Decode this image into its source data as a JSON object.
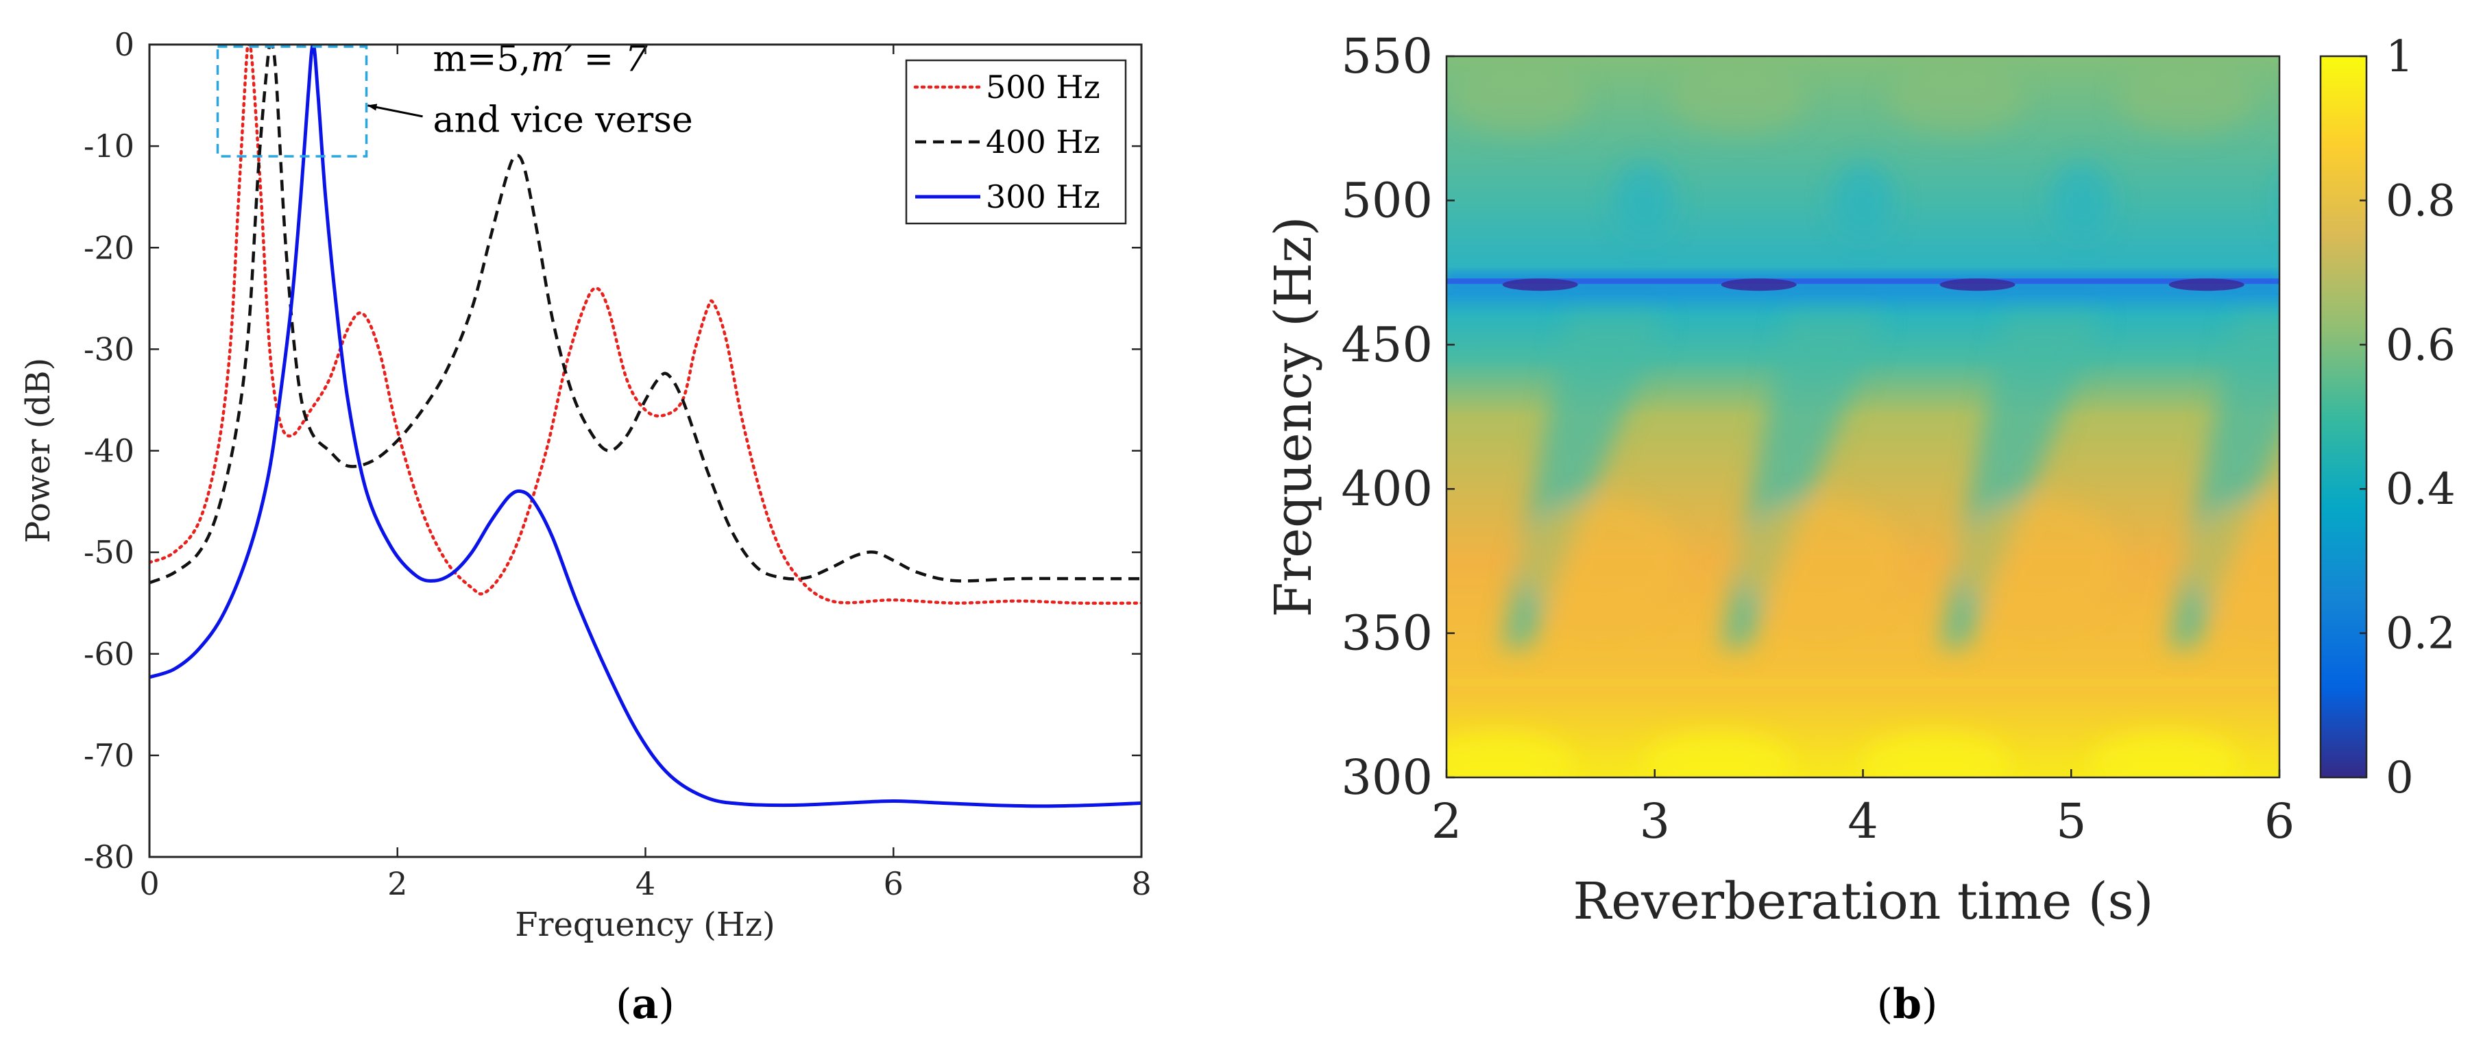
{
  "figure": {
    "caption_a": "a",
    "caption_b": "b"
  },
  "chart_data": [
    {
      "panel": "a",
      "type": "line",
      "title": "",
      "xlabel": "Frequency (Hz)",
      "ylabel": "Power (dB)",
      "xlim": [
        0,
        8
      ],
      "ylim": [
        -80,
        0
      ],
      "xticks": [
        "0",
        "2",
        "4",
        "6",
        "8"
      ],
      "yticks": [
        "0",
        "-10",
        "-20",
        "-30",
        "-40",
        "-50",
        "-60",
        "-70",
        "-80"
      ],
      "grid": false,
      "legend_position": "top-right",
      "annotation": {
        "line1": "m=5,",
        "line1_math": "m′ = 7",
        "line2": "and vice verse",
        "box_x": [
          0.55,
          1.75
        ],
        "box_y": [
          -11,
          0
        ],
        "arrow_target": [
          1.75,
          -6
        ]
      },
      "series": [
        {
          "name": "500 Hz",
          "color": "#e8211d",
          "style": "dotted",
          "points": [
            [
              0,
              -51
            ],
            [
              0.2,
              -50
            ],
            [
              0.4,
              -47
            ],
            [
              0.55,
              -40
            ],
            [
              0.65,
              -30
            ],
            [
              0.72,
              -15
            ],
            [
              0.78,
              -2
            ],
            [
              0.8,
              0
            ],
            [
              0.83,
              -2
            ],
            [
              0.9,
              -15
            ],
            [
              0.97,
              -30
            ],
            [
              1.05,
              -37
            ],
            [
              1.15,
              -38.5
            ],
            [
              1.3,
              -36
            ],
            [
              1.45,
              -33
            ],
            [
              1.6,
              -28
            ],
            [
              1.72,
              -26.5
            ],
            [
              1.85,
              -30
            ],
            [
              2.0,
              -38
            ],
            [
              2.2,
              -46
            ],
            [
              2.4,
              -51
            ],
            [
              2.6,
              -53.5
            ],
            [
              2.7,
              -54
            ],
            [
              2.85,
              -52
            ],
            [
              3.0,
              -48
            ],
            [
              3.2,
              -40
            ],
            [
              3.35,
              -32
            ],
            [
              3.5,
              -26
            ],
            [
              3.6,
              -24
            ],
            [
              3.7,
              -26
            ],
            [
              3.85,
              -33
            ],
            [
              4.0,
              -36
            ],
            [
              4.15,
              -36.5
            ],
            [
              4.3,
              -35
            ],
            [
              4.4,
              -30
            ],
            [
              4.5,
              -26
            ],
            [
              4.55,
              -25.5
            ],
            [
              4.65,
              -29
            ],
            [
              4.8,
              -38
            ],
            [
              5.0,
              -47
            ],
            [
              5.2,
              -52
            ],
            [
              5.5,
              -54.8
            ],
            [
              6.0,
              -54.7
            ],
            [
              6.5,
              -55
            ],
            [
              7.0,
              -54.8
            ],
            [
              7.5,
              -55
            ],
            [
              8.0,
              -55
            ]
          ]
        },
        {
          "name": "400 Hz",
          "color": "#111111",
          "style": "dashed",
          "points": [
            [
              0,
              -53
            ],
            [
              0.2,
              -52
            ],
            [
              0.4,
              -50
            ],
            [
              0.55,
              -46
            ],
            [
              0.7,
              -38
            ],
            [
              0.8,
              -28
            ],
            [
              0.88,
              -12
            ],
            [
              0.95,
              -2
            ],
            [
              0.98,
              0
            ],
            [
              1.02,
              -3
            ],
            [
              1.1,
              -20
            ],
            [
              1.2,
              -33
            ],
            [
              1.3,
              -38
            ],
            [
              1.45,
              -40
            ],
            [
              1.6,
              -41.5
            ],
            [
              1.8,
              -41
            ],
            [
              2.0,
              -39
            ],
            [
              2.2,
              -36
            ],
            [
              2.4,
              -32
            ],
            [
              2.6,
              -26
            ],
            [
              2.75,
              -19
            ],
            [
              2.88,
              -13
            ],
            [
              2.95,
              -11
            ],
            [
              3.02,
              -12
            ],
            [
              3.12,
              -18
            ],
            [
              3.25,
              -27
            ],
            [
              3.4,
              -34
            ],
            [
              3.55,
              -38
            ],
            [
              3.7,
              -40
            ],
            [
              3.85,
              -38.5
            ],
            [
              4.0,
              -35
            ],
            [
              4.1,
              -33
            ],
            [
              4.18,
              -32.5
            ],
            [
              4.3,
              -35
            ],
            [
              4.5,
              -42
            ],
            [
              4.7,
              -48
            ],
            [
              4.9,
              -51.5
            ],
            [
              5.1,
              -52.5
            ],
            [
              5.3,
              -52.5
            ],
            [
              5.5,
              -51.5
            ],
            [
              5.7,
              -50.3
            ],
            [
              5.85,
              -50
            ],
            [
              6.0,
              -50.8
            ],
            [
              6.2,
              -52
            ],
            [
              6.5,
              -52.8
            ],
            [
              7.0,
              -52.6
            ],
            [
              7.5,
              -52.6
            ],
            [
              8.0,
              -52.6
            ]
          ]
        },
        {
          "name": "300 Hz",
          "color": "#0a14e8",
          "style": "solid",
          "points": [
            [
              0,
              -62.3
            ],
            [
              0.2,
              -61.5
            ],
            [
              0.4,
              -59.5
            ],
            [
              0.6,
              -56
            ],
            [
              0.8,
              -50
            ],
            [
              0.95,
              -43
            ],
            [
              1.05,
              -35
            ],
            [
              1.15,
              -25
            ],
            [
              1.22,
              -15
            ],
            [
              1.28,
              -5
            ],
            [
              1.32,
              0
            ],
            [
              1.36,
              -5
            ],
            [
              1.42,
              -15
            ],
            [
              1.5,
              -25
            ],
            [
              1.6,
              -35
            ],
            [
              1.75,
              -44
            ],
            [
              1.95,
              -49.5
            ],
            [
              2.15,
              -52.3
            ],
            [
              2.3,
              -52.8
            ],
            [
              2.45,
              -52
            ],
            [
              2.6,
              -50
            ],
            [
              2.75,
              -47
            ],
            [
              2.9,
              -44.5
            ],
            [
              3.0,
              -44
            ],
            [
              3.1,
              -45
            ],
            [
              3.25,
              -48.5
            ],
            [
              3.45,
              -55
            ],
            [
              3.7,
              -62
            ],
            [
              3.95,
              -68
            ],
            [
              4.2,
              -72
            ],
            [
              4.5,
              -74.2
            ],
            [
              4.8,
              -74.8
            ],
            [
              5.2,
              -74.9
            ],
            [
              5.6,
              -74.7
            ],
            [
              6.0,
              -74.5
            ],
            [
              6.4,
              -74.7
            ],
            [
              6.8,
              -74.9
            ],
            [
              7.2,
              -75
            ],
            [
              7.6,
              -74.9
            ],
            [
              8.0,
              -74.7
            ]
          ]
        }
      ]
    },
    {
      "panel": "b",
      "type": "heatmap",
      "title": "",
      "xlabel": "Reverberation time (s)",
      "ylabel": "Frequency (Hz)",
      "xlim": [
        2,
        6
      ],
      "ylim": [
        300,
        550
      ],
      "xticks": [
        "2",
        "3",
        "4",
        "5",
        "6"
      ],
      "yticks": [
        "300",
        "350",
        "400",
        "450",
        "500",
        "550"
      ],
      "colorbar": {
        "range": [
          0,
          1
        ],
        "ticks": [
          "0",
          "0.2",
          "0.4",
          "0.6",
          "0.8",
          "1"
        ],
        "colormap": "parula",
        "colormap_stops": [
          "#352a87",
          "#0363e1",
          "#1485d4",
          "#06a7c6",
          "#38b99e",
          "#92bf73",
          "#d9ba56",
          "#fcce2e",
          "#f9fb0e"
        ]
      },
      "description_values": {
        "dark_band_frequency": 472,
        "dark_band_value": 0.15,
        "low_frequency_value": 0.85,
        "high_frequency_value": 0.65,
        "diagonal_dip_starts": [
          2.3,
          3.35,
          4.4,
          5.5
        ],
        "period_s": 1.1
      }
    }
  ]
}
